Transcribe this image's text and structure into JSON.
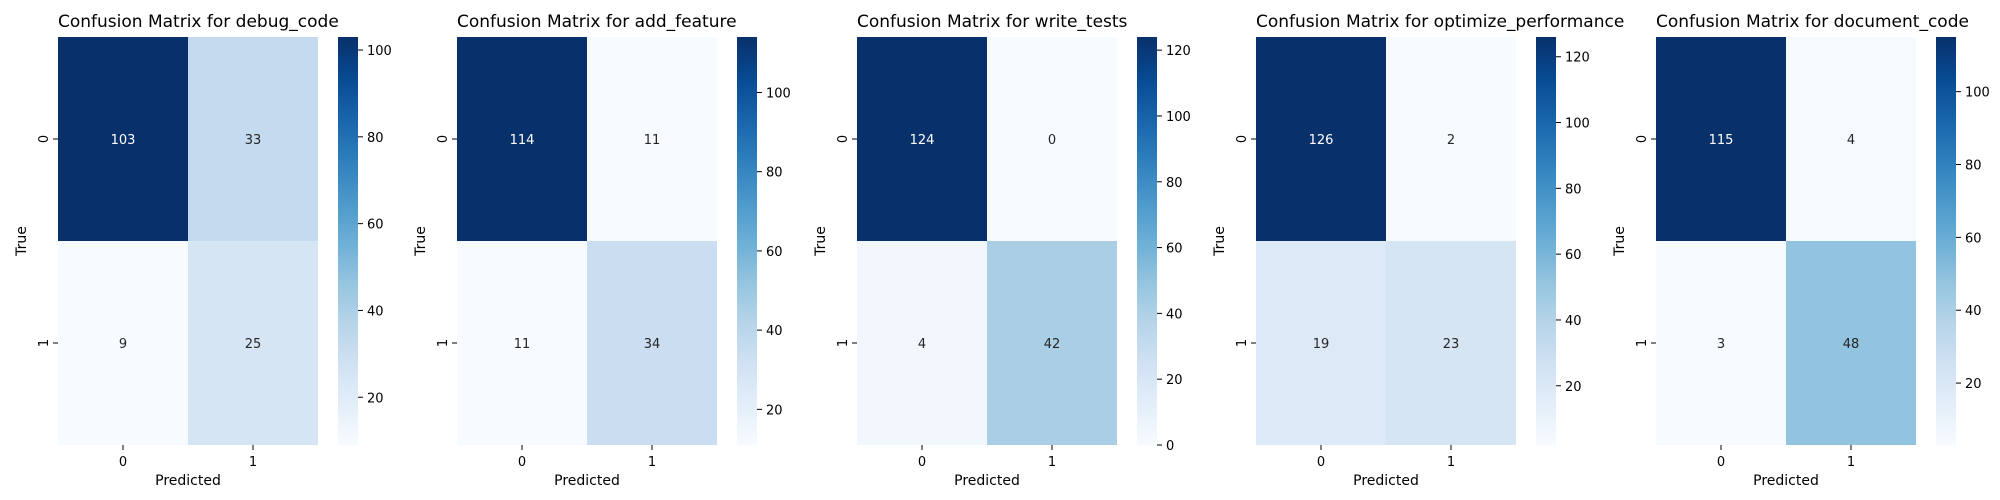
{
  "chart_data": [
    {
      "type": "heatmap",
      "title": "Confusion Matrix for debug_code",
      "xlabel": "Predicted",
      "ylabel": "True",
      "x_categories": [
        "0",
        "1"
      ],
      "y_categories": [
        "0",
        "1"
      ],
      "values": [
        [
          103,
          33
        ],
        [
          9,
          25
        ]
      ],
      "colormap": "Blues",
      "colorbar": {
        "min": 9,
        "max": 103,
        "ticks": [
          20,
          40,
          60,
          80,
          100
        ]
      }
    },
    {
      "type": "heatmap",
      "title": "Confusion Matrix for add_feature",
      "xlabel": "Predicted",
      "ylabel": "True",
      "x_categories": [
        "0",
        "1"
      ],
      "y_categories": [
        "0",
        "1"
      ],
      "values": [
        [
          114,
          11
        ],
        [
          11,
          34
        ]
      ],
      "colormap": "Blues",
      "colorbar": {
        "min": 11,
        "max": 114,
        "ticks": [
          20,
          40,
          60,
          80,
          100
        ]
      }
    },
    {
      "type": "heatmap",
      "title": "Confusion Matrix for write_tests",
      "xlabel": "Predicted",
      "ylabel": "True",
      "x_categories": [
        "0",
        "1"
      ],
      "y_categories": [
        "0",
        "1"
      ],
      "values": [
        [
          124,
          0
        ],
        [
          4,
          42
        ]
      ],
      "colormap": "Blues",
      "colorbar": {
        "min": 0,
        "max": 124,
        "ticks": [
          0,
          20,
          40,
          60,
          80,
          100,
          120
        ]
      }
    },
    {
      "type": "heatmap",
      "title": "Confusion Matrix for optimize_performance",
      "xlabel": "Predicted",
      "ylabel": "True",
      "x_categories": [
        "0",
        "1"
      ],
      "y_categories": [
        "0",
        "1"
      ],
      "values": [
        [
          126,
          2
        ],
        [
          19,
          23
        ]
      ],
      "colormap": "Blues",
      "colorbar": {
        "min": 2,
        "max": 126,
        "ticks": [
          20,
          40,
          60,
          80,
          100,
          120
        ]
      }
    },
    {
      "type": "heatmap",
      "title": "Confusion Matrix for document_code",
      "xlabel": "Predicted",
      "ylabel": "True",
      "x_categories": [
        "0",
        "1"
      ],
      "y_categories": [
        "0",
        "1"
      ],
      "values": [
        [
          115,
          4
        ],
        [
          3,
          48
        ]
      ],
      "colormap": "Blues",
      "colorbar": {
        "min": 3,
        "max": 115,
        "ticks": [
          20,
          40,
          60,
          80,
          100
        ]
      }
    }
  ]
}
